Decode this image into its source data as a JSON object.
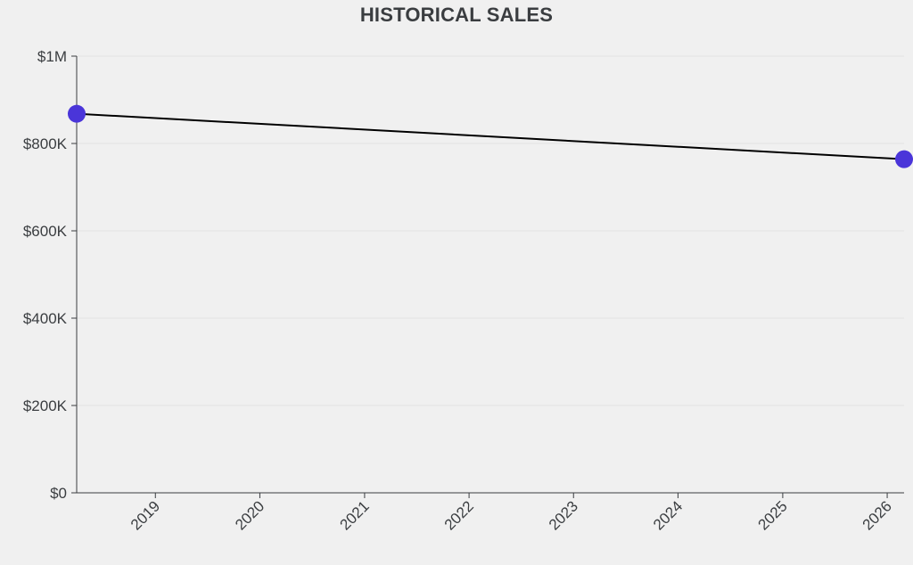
{
  "chart_data": {
    "type": "line",
    "title": "HISTORICAL SALES",
    "xlabel": "",
    "ylabel": "",
    "x_ticks": [
      "2019",
      "2020",
      "2021",
      "2022",
      "2023",
      "2024",
      "2025",
      "2026"
    ],
    "y_ticks": [
      "$0",
      "$200K",
      "$400K",
      "$600K",
      "$800K",
      "$1M"
    ],
    "ylim": [
      0,
      1000000
    ],
    "xlim": [
      "2018-04-01",
      "2026-03-01"
    ],
    "grid": true,
    "series": [
      {
        "color": "#000000",
        "marker_color": "#4a35d9",
        "points": [
          {
            "x": "2018-04-01",
            "y": 868000
          },
          {
            "x": "2026-03-01",
            "y": 764000
          }
        ]
      }
    ]
  },
  "colors": {
    "background": "#f0f0f0",
    "gridline": "#e2e2e2",
    "axis": "#3a3d40",
    "text": "#3a3d40"
  }
}
